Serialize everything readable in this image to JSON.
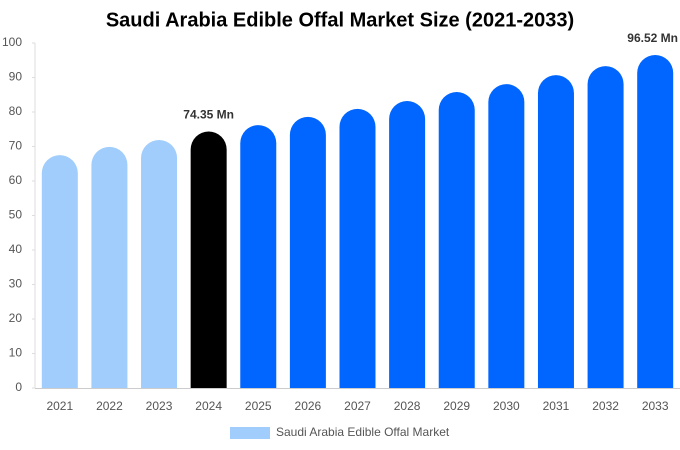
{
  "chart_data": {
    "type": "bar",
    "title": "Saudi Arabia Edible Offal Market Size (2021-2033)",
    "categories": [
      "2021",
      "2022",
      "2023",
      "2024",
      "2025",
      "2026",
      "2027",
      "2028",
      "2029",
      "2030",
      "2031",
      "2032",
      "2033"
    ],
    "series": [
      {
        "name": "Saudi Arabia Edible Offal Market",
        "color": "#a0cdfb",
        "values": [
          67.5,
          69.9,
          71.9,
          74.35,
          76.2,
          78.6,
          80.9,
          83.2,
          85.8,
          88.1,
          90.7,
          93.3,
          96.52
        ],
        "value_labels": [
          null,
          null,
          null,
          "74.35 Mn",
          null,
          null,
          null,
          null,
          null,
          null,
          null,
          null,
          "96.52 Mn"
        ],
        "colors": [
          "#a0cdfb",
          "#a0cdfb",
          "#a0cdfb",
          "#000000",
          "#0066ff",
          "#0066ff",
          "#0066ff",
          "#0066ff",
          "#0066ff",
          "#0066ff",
          "#0066ff",
          "#0066ff",
          "#0066ff"
        ]
      }
    ],
    "ylim": [
      0,
      100
    ],
    "yticks": [
      0,
      10,
      20,
      30,
      40,
      50,
      60,
      70,
      80,
      90,
      100
    ],
    "grid": false
  }
}
